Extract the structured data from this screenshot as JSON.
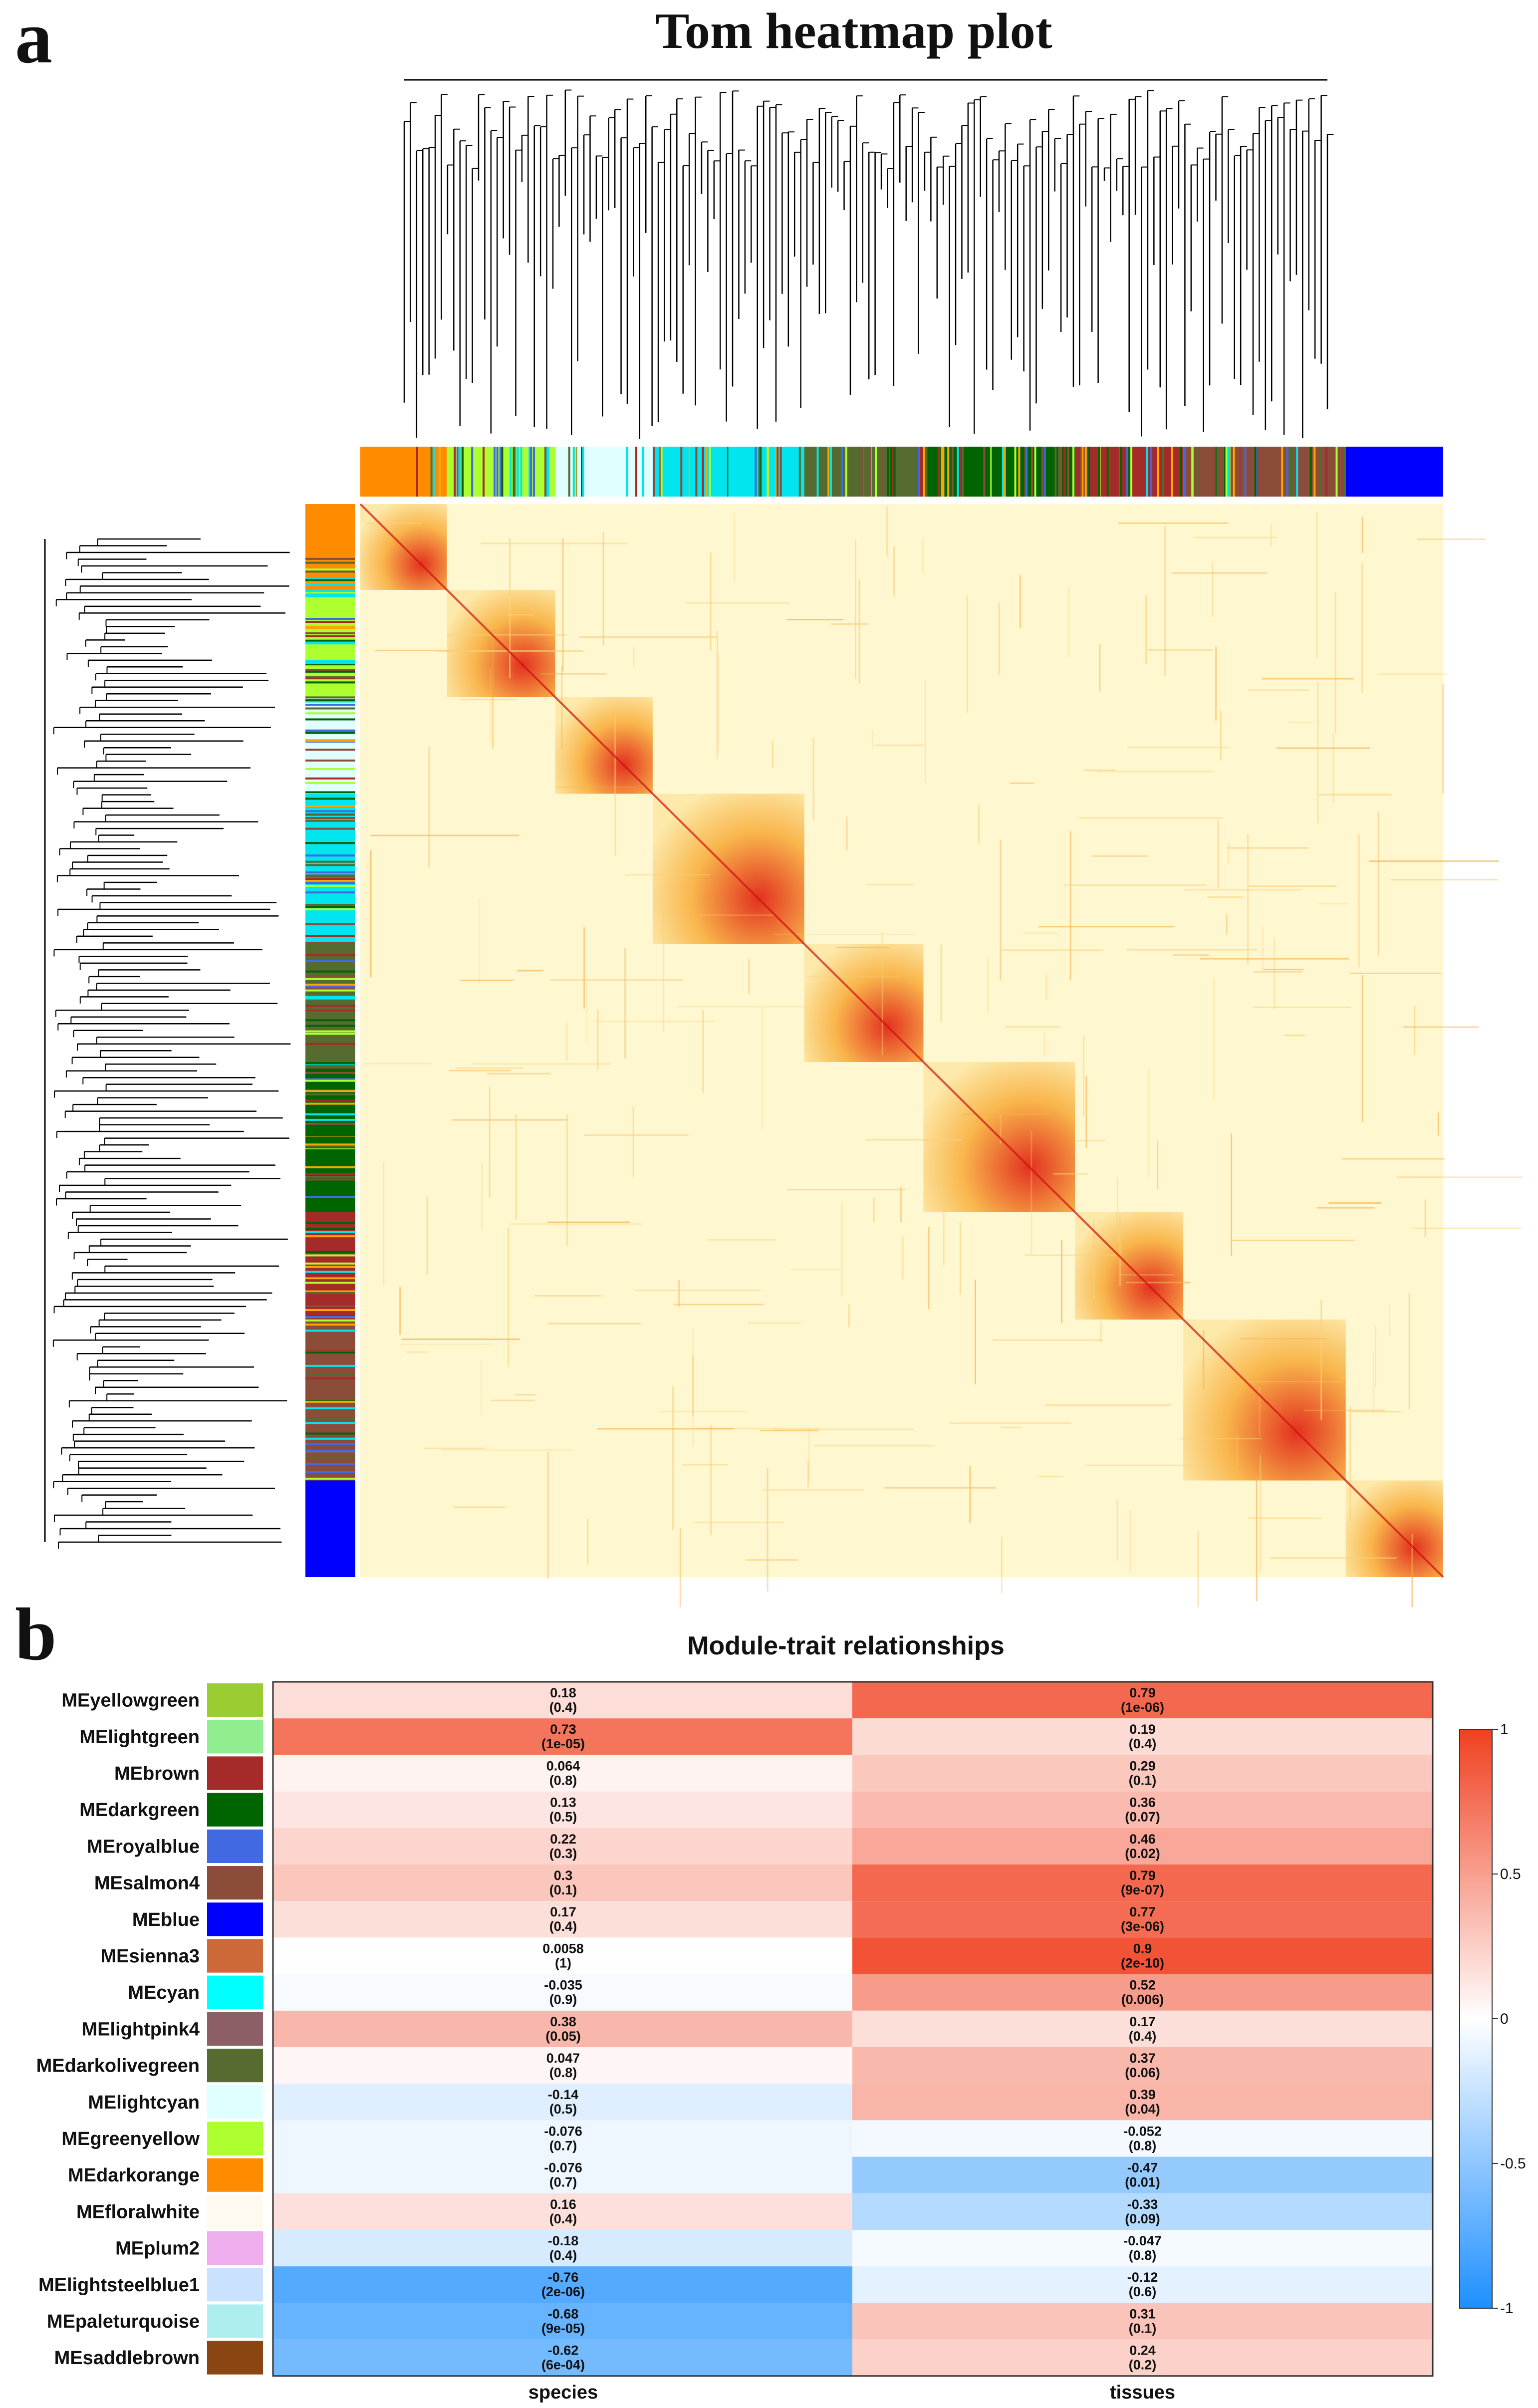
{
  "panel_a": {
    "letter": "a",
    "title": "Tom heatmap plot"
  },
  "panel_b": {
    "letter": "b"
  },
  "chart_data": [
    {
      "type": "heatmap",
      "title": "Tom heatmap plot",
      "description_modules_order": [
        "darkorange",
        "greenyellow",
        "lightcyan",
        "cyan",
        "darkolivegreen",
        "darkgreen",
        "brown",
        "salmon4",
        "blue"
      ],
      "colors": {
        "low": "#fff7d0",
        "mid": "#f8b040",
        "high": "#e02010"
      }
    },
    {
      "type": "heatmap",
      "title": "Module-trait relationships",
      "columns": [
        "species",
        "tissues"
      ],
      "rows": [
        {
          "name": "MEyellowgreen",
          "color": "#9acd32",
          "values": [
            0.18,
            0.79
          ],
          "pvals": [
            "(0.4)",
            "(1e-06)"
          ],
          "labels": [
            "0.18",
            "0.79"
          ]
        },
        {
          "name": "MElightgreen",
          "color": "#90ee90",
          "values": [
            0.73,
            0.19
          ],
          "pvals": [
            "(1e-05)",
            "(0.4)"
          ],
          "labels": [
            "0.73",
            "0.19"
          ]
        },
        {
          "name": "MEbrown",
          "color": "#a52a2a",
          "values": [
            0.064,
            0.29
          ],
          "pvals": [
            "(0.8)",
            "(0.1)"
          ],
          "labels": [
            "0.064",
            "0.29"
          ]
        },
        {
          "name": "MEdarkgreen",
          "color": "#006400",
          "values": [
            0.13,
            0.36
          ],
          "pvals": [
            "(0.5)",
            "(0.07)"
          ],
          "labels": [
            "0.13",
            "0.36"
          ]
        },
        {
          "name": "MEroyalblue",
          "color": "#4169e1",
          "values": [
            0.22,
            0.46
          ],
          "pvals": [
            "(0.3)",
            "(0.02)"
          ],
          "labels": [
            "0.22",
            "0.46"
          ]
        },
        {
          "name": "MEsalmon4",
          "color": "#8b4c39",
          "values": [
            0.3,
            0.79
          ],
          "pvals": [
            "(0.1)",
            "(9e-07)"
          ],
          "labels": [
            "0.3",
            "0.79"
          ]
        },
        {
          "name": "MEblue",
          "color": "#0000ff",
          "values": [
            0.17,
            0.77
          ],
          "pvals": [
            "(0.4)",
            "(3e-06)"
          ],
          "labels": [
            "0.17",
            "0.77"
          ]
        },
        {
          "name": "MEsienna3",
          "color": "#cd6839",
          "values": [
            0.0058,
            0.9
          ],
          "pvals": [
            "(1)",
            "(2e-10)"
          ],
          "labels": [
            "0.0058",
            "0.9"
          ]
        },
        {
          "name": "MEcyan",
          "color": "#00ffff",
          "values": [
            -0.035,
            0.52
          ],
          "pvals": [
            "(0.9)",
            "(0.006)"
          ],
          "labels": [
            "-0.035",
            "0.52"
          ]
        },
        {
          "name": "MElightpink4",
          "color": "#8b5f65",
          "values": [
            0.38,
            0.17
          ],
          "pvals": [
            "(0.05)",
            "(0.4)"
          ],
          "labels": [
            "0.38",
            "0.17"
          ]
        },
        {
          "name": "MEdarkolivegreen",
          "color": "#556b2f",
          "values": [
            0.047,
            0.37
          ],
          "pvals": [
            "(0.8)",
            "(0.06)"
          ],
          "labels": [
            "0.047",
            "0.37"
          ]
        },
        {
          "name": "MElightcyan",
          "color": "#e0ffff",
          "values": [
            -0.14,
            0.39
          ],
          "pvals": [
            "(0.5)",
            "(0.04)"
          ],
          "labels": [
            "-0.14",
            "0.39"
          ]
        },
        {
          "name": "MEgreenyellow",
          "color": "#adff2f",
          "values": [
            -0.076,
            -0.052
          ],
          "pvals": [
            "(0.7)",
            "(0.8)"
          ],
          "labels": [
            "-0.076",
            "-0.052"
          ]
        },
        {
          "name": "MEdarkorange",
          "color": "#ff8c00",
          "values": [
            -0.076,
            -0.47
          ],
          "pvals": [
            "(0.7)",
            "(0.01)"
          ],
          "labels": [
            "-0.076",
            "-0.47"
          ]
        },
        {
          "name": "MEfloralwhite",
          "color": "#fffaf0",
          "values": [
            0.16,
            -0.33
          ],
          "pvals": [
            "(0.4)",
            "(0.09)"
          ],
          "labels": [
            "0.16",
            "-0.33"
          ]
        },
        {
          "name": "MEplum2",
          "color": "#eeaeee",
          "values": [
            -0.18,
            -0.047
          ],
          "pvals": [
            "(0.4)",
            "(0.8)"
          ],
          "labels": [
            "-0.18",
            "-0.047"
          ]
        },
        {
          "name": "MElightsteelblue1",
          "color": "#cae1ff",
          "values": [
            -0.76,
            -0.12
          ],
          "pvals": [
            "(2e-06)",
            "(0.6)"
          ],
          "labels": [
            "-0.76",
            "-0.12"
          ]
        },
        {
          "name": "MEpaleturquoise",
          "color": "#afeeee",
          "values": [
            -0.68,
            0.31
          ],
          "pvals": [
            "(9e-05)",
            "(0.1)"
          ],
          "labels": [
            "-0.68",
            "0.31"
          ]
        },
        {
          "name": "MEsaddlebrown",
          "color": "#8b4513",
          "values": [
            -0.62,
            0.24
          ],
          "pvals": [
            "(6e-04)",
            "(0.2)"
          ],
          "labels": [
            "-0.62",
            "0.24"
          ]
        }
      ],
      "colorbar": {
        "ticks": [
          "1",
          "0.5",
          "0",
          "-0.5",
          "-1"
        ],
        "tick_values": [
          1,
          0.5,
          0,
          -0.5,
          -1
        ],
        "range": [
          -1,
          1
        ],
        "colors": {
          "negative": "#1e8fff",
          "zero": "#ffffff",
          "positive": "#f04020"
        }
      }
    }
  ]
}
